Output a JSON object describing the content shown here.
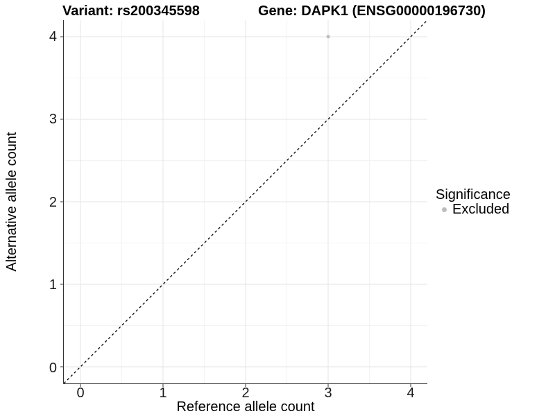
{
  "title": {
    "variant": "Variant: rs200345598",
    "gene": "Gene: DAPK1 (ENSG00000196730)"
  },
  "x_axis": {
    "label": "Reference allele count",
    "tick_labels": [
      "0",
      "1",
      "2",
      "3",
      "4"
    ]
  },
  "y_axis": {
    "label": "Alternative allele count",
    "tick_labels": [
      "0",
      "1",
      "2",
      "3",
      "4"
    ]
  },
  "legend": {
    "title": "Significance",
    "items": [
      {
        "label": "Excluded",
        "color": "#BDBDBD"
      }
    ]
  },
  "chart_data": {
    "type": "scatter",
    "title": "Variant: rs200345598 / Gene: DAPK1 (ENSG00000196730)",
    "xlabel": "Reference allele count",
    "ylabel": "Alternative allele count",
    "xlim": [
      -0.2,
      4.2
    ],
    "ylim": [
      -0.2,
      4.2
    ],
    "x_ticks": [
      0,
      1,
      2,
      3,
      4
    ],
    "y_ticks": [
      0,
      1,
      2,
      3,
      4
    ],
    "minor_ticks": [
      0.5,
      1.5,
      2.5,
      3.5
    ],
    "grid": "major and minor, light gray on white",
    "legend_position": "right",
    "series": [
      {
        "name": "Excluded",
        "color": "#BDBDBD",
        "points": [
          {
            "x": 3,
            "y": 4
          }
        ]
      }
    ],
    "reference_line": {
      "type": "identity y=x",
      "style": "dashed",
      "color": "#000000"
    }
  },
  "colors": {
    "background": "#FFFFFF",
    "grid_major": "#E4E4E4",
    "grid_minor": "#F3F3F3",
    "axis_line": "#333333",
    "point": "#BDBDBD",
    "dashed_line": "#000000"
  }
}
